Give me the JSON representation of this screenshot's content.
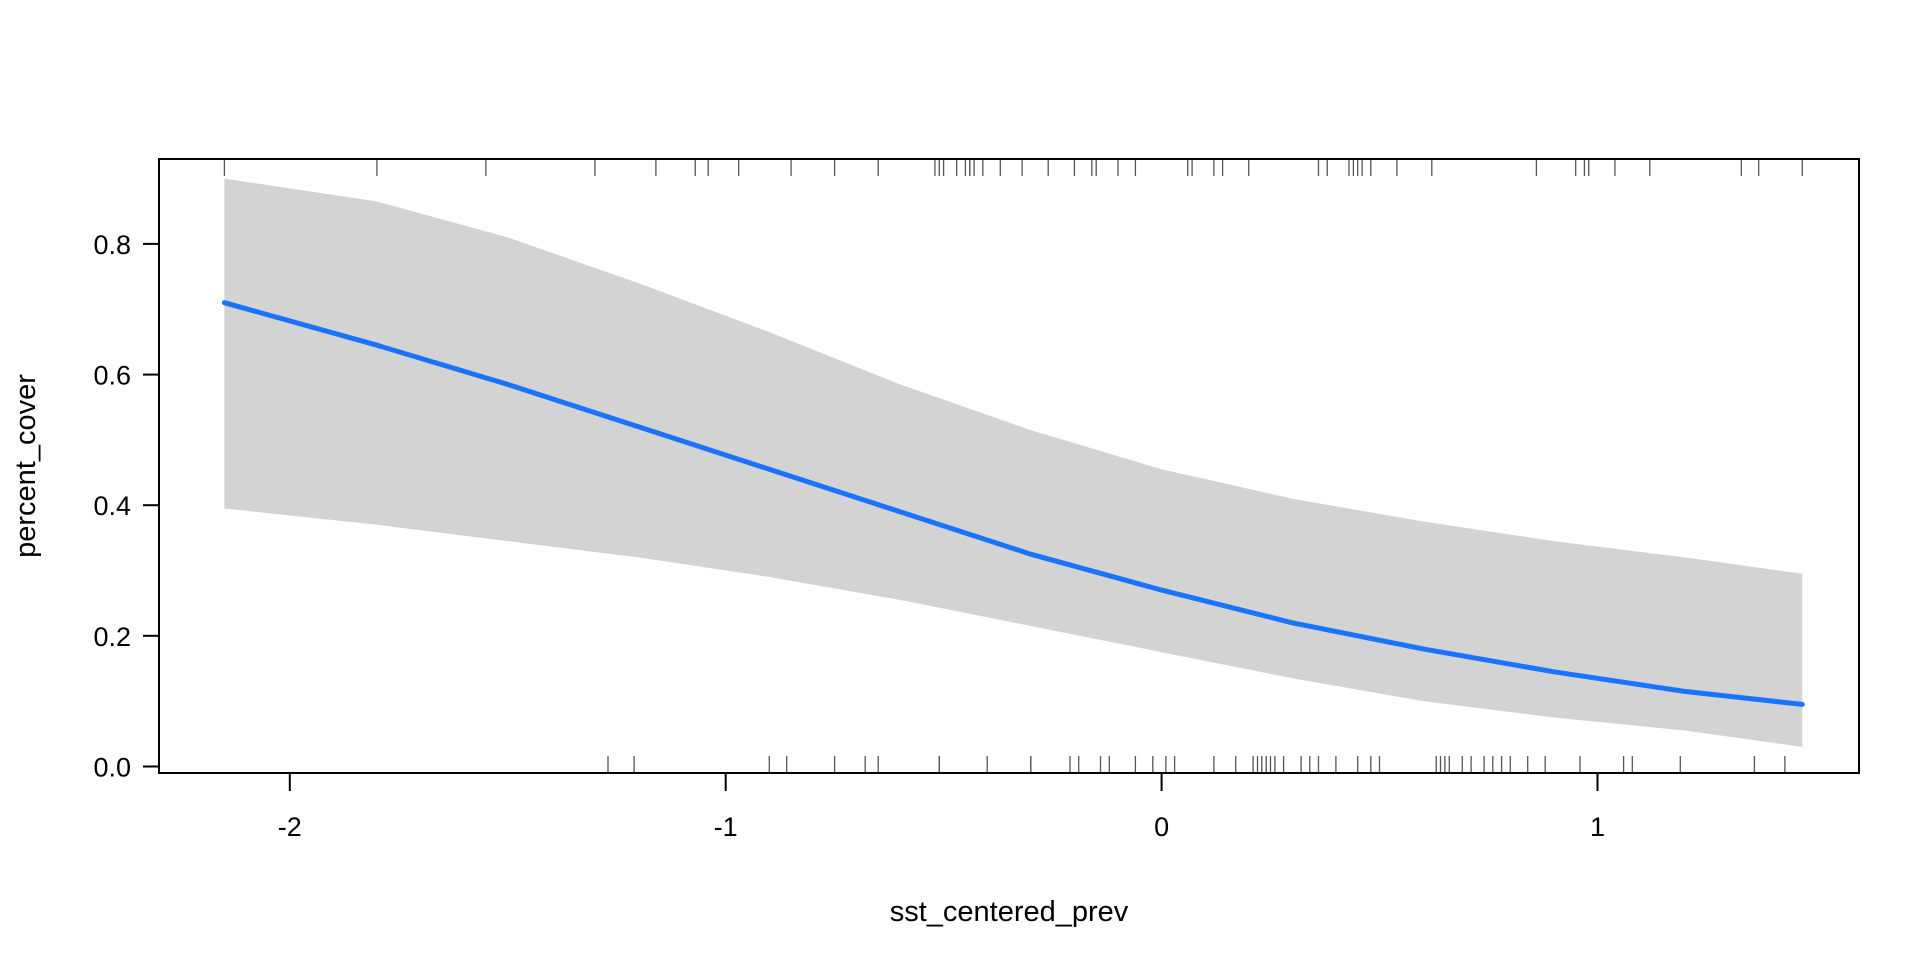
{
  "chart_data": {
    "type": "line",
    "title": "",
    "xlabel": "sst_centered_prev",
    "ylabel": "percent_cover",
    "xlim": [
      -2.3,
      1.6
    ],
    "ylim": [
      -0.01,
      0.93
    ],
    "x_ticks": [
      -2,
      -1,
      0,
      1
    ],
    "x_tick_labels": [
      "-2",
      "-1",
      "0",
      "1"
    ],
    "y_ticks": [
      0.0,
      0.2,
      0.4,
      0.6,
      0.8
    ],
    "y_tick_labels": [
      "0.0",
      "0.2",
      "0.4",
      "0.6",
      "0.8"
    ],
    "grid": false,
    "colors": {
      "line": "#1a73ff",
      "band": "#d3d3d3",
      "frame": "#000000"
    },
    "series": [
      {
        "x": [
          -2.15,
          -1.8,
          -1.5,
          -1.2,
          -0.9,
          -0.6,
          -0.3,
          0.0,
          0.3,
          0.6,
          0.9,
          1.2,
          1.47
        ],
        "fit": [
          0.71,
          0.645,
          0.585,
          0.52,
          0.455,
          0.39,
          0.325,
          0.27,
          0.22,
          0.18,
          0.145,
          0.115,
          0.095
        ],
        "lower": [
          0.395,
          0.37,
          0.345,
          0.32,
          0.29,
          0.255,
          0.215,
          0.175,
          0.135,
          0.1,
          0.075,
          0.055,
          0.03
        ],
        "upper": [
          0.9,
          0.865,
          0.81,
          0.74,
          0.665,
          0.585,
          0.515,
          0.455,
          0.41,
          0.375,
          0.345,
          0.32,
          0.295
        ]
      }
    ],
    "rug_top": [
      -2.15,
      -1.8,
      -1.55,
      -1.3,
      -1.16,
      -1.07,
      -1.04,
      -0.97,
      -0.85,
      -0.75,
      -0.65,
      -0.52,
      -0.51,
      -0.5,
      -0.47,
      -0.45,
      -0.44,
      -0.44,
      -0.43,
      -0.41,
      -0.37,
      -0.32,
      -0.26,
      -0.2,
      -0.16,
      -0.15,
      -0.1,
      -0.06,
      0.06,
      0.07,
      0.12,
      0.14,
      0.2,
      0.36,
      0.38,
      0.43,
      0.44,
      0.45,
      0.46,
      0.48,
      0.54,
      0.62,
      0.86,
      0.95,
      0.97,
      0.98,
      1.04,
      1.12,
      1.33,
      1.37,
      1.47
    ],
    "rug_bottom": [
      -1.27,
      -1.21,
      -0.9,
      -0.86,
      -0.75,
      -0.68,
      -0.65,
      -0.51,
      -0.51,
      -0.4,
      -0.3,
      -0.3,
      -0.21,
      -0.19,
      -0.14,
      -0.12,
      -0.06,
      -0.02,
      0.01,
      0.03,
      0.12,
      0.17,
      0.21,
      0.22,
      0.23,
      0.24,
      0.25,
      0.26,
      0.28,
      0.32,
      0.34,
      0.36,
      0.4,
      0.45,
      0.48,
      0.5,
      0.63,
      0.64,
      0.65,
      0.66,
      0.69,
      0.71,
      0.74,
      0.76,
      0.78,
      0.8,
      0.84,
      0.88,
      0.96,
      1.06,
      1.08,
      1.19,
      1.36,
      1.43
    ]
  }
}
